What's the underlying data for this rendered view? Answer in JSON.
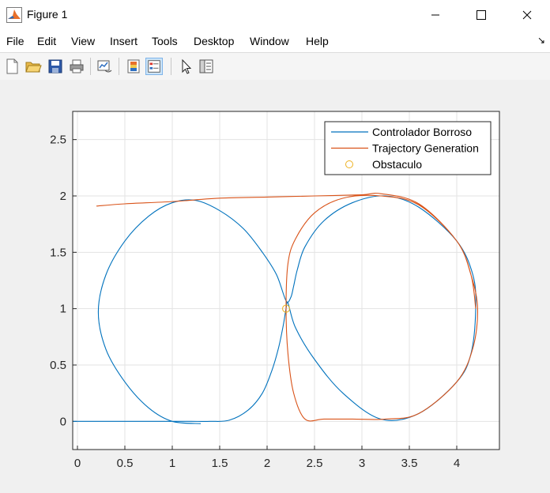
{
  "window": {
    "title": "Figure 1"
  },
  "menu": {
    "items": [
      "File",
      "Edit",
      "View",
      "Insert",
      "Tools",
      "Desktop",
      "Window",
      "Help"
    ]
  },
  "toolbar": {
    "icons": [
      "new-figure-icon",
      "open-file-icon",
      "save-icon",
      "print-icon",
      "link-plot-icon",
      "colorbar-icon",
      "legend-icon",
      "edit-plot-icon",
      "property-inspector-icon"
    ]
  },
  "chart_data": {
    "type": "line",
    "xlim": [
      -0.05,
      4.45
    ],
    "ylim": [
      -0.25,
      2.75
    ],
    "xticks": [
      0,
      0.5,
      1,
      1.5,
      2,
      2.5,
      3,
      3.5,
      4
    ],
    "yticks": [
      0,
      0.5,
      1,
      1.5,
      2,
      2.5
    ],
    "xtick_labels": [
      "0",
      "0.5",
      "1",
      "1.5",
      "2",
      "2.5",
      "3",
      "3.5",
      "4"
    ],
    "ytick_labels": [
      "0",
      "0.5",
      "1",
      "1.5",
      "2",
      "2.5"
    ],
    "grid": true,
    "legend_position": "top-right",
    "series": [
      {
        "name": "Controlador Borroso",
        "color": "#0072BD",
        "style": "line",
        "x": [
          -0.05,
          0.2,
          0.4,
          0.6,
          0.8,
          1.0,
          1.2,
          1.4,
          1.6,
          1.8,
          1.95,
          2.05,
          2.12,
          2.17,
          2.2,
          2.22,
          2.3,
          2.5,
          2.8,
          3.2,
          3.6,
          4.0,
          4.15,
          4.2,
          4.17,
          4.0,
          3.6,
          3.25,
          2.9,
          2.6,
          2.4,
          2.32,
          2.28,
          2.25,
          2.2,
          2.1,
          1.95,
          1.75,
          1.5,
          1.25,
          1.0,
          0.75,
          0.5,
          0.3,
          0.22,
          0.3,
          0.5,
          0.75,
          1.0,
          1.3
        ],
        "y": [
          0.0,
          0.0,
          0.0,
          0.0,
          0.0,
          0.0,
          0.0,
          0.0,
          0.01,
          0.1,
          0.25,
          0.45,
          0.65,
          0.85,
          1.0,
          1.05,
          0.83,
          0.55,
          0.25,
          0.02,
          0.07,
          0.35,
          0.6,
          1.0,
          1.3,
          1.6,
          1.9,
          2.0,
          1.94,
          1.78,
          1.55,
          1.35,
          1.2,
          1.1,
          1.07,
          1.3,
          1.5,
          1.71,
          1.87,
          1.96,
          1.94,
          1.82,
          1.6,
          1.3,
          0.97,
          0.64,
          0.35,
          0.12,
          0.0,
          -0.02
        ]
      },
      {
        "name": "Trajectory Generation",
        "color": "#D95319",
        "style": "line",
        "x": [
          0.2,
          0.5,
          1.0,
          1.5,
          2.0,
          2.5,
          3.0,
          3.2,
          3.6,
          4.0,
          4.15,
          4.22,
          4.17,
          4.0,
          3.6,
          3.25,
          2.9,
          2.6,
          2.4,
          2.28,
          2.22,
          2.2,
          2.22,
          2.3,
          2.5,
          2.8,
          3.2,
          3.6,
          4.0,
          4.15,
          4.2
        ],
        "y": [
          1.91,
          1.93,
          1.95,
          1.98,
          1.99,
          2.0,
          2.01,
          2.02,
          1.93,
          1.6,
          1.3,
          1.0,
          0.65,
          0.35,
          0.07,
          0.02,
          0.02,
          0.02,
          0.02,
          0.25,
          0.6,
          1.0,
          1.4,
          1.62,
          1.85,
          1.98,
          2.0,
          1.92,
          1.6,
          1.3,
          1.0
        ]
      },
      {
        "name": "Obstaculo",
        "color": "#EDB120",
        "style": "marker",
        "x": [
          2.2
        ],
        "y": [
          1.0
        ]
      }
    ]
  }
}
